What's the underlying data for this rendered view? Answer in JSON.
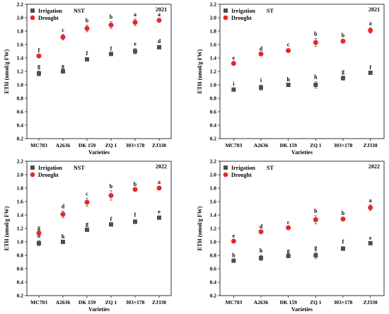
{
  "chart_data": [
    {
      "type": "scatter",
      "legend_title": "NST",
      "year": "2021",
      "xlabel": "Varieties",
      "ylabel": "ETH (umol/g FW)",
      "ylim": [
        0.2,
        2.2
      ],
      "yticks": [
        "0.2",
        "0.4",
        "0.6",
        "0.8",
        "1.0",
        "1.2",
        "1.4",
        "1.6",
        "1.8",
        "2.0",
        "2.2"
      ],
      "categories": [
        "MC703",
        "A2636",
        "DK 159",
        "ZQ 1",
        "303×178",
        "ZJ330"
      ],
      "legend_position": "top-left",
      "series": [
        {
          "name": "Irrigation",
          "marker": "square",
          "color": "#4d4d4d",
          "values": [
            1.17,
            1.2,
            1.38,
            1.46,
            1.5,
            1.56
          ],
          "errors": [
            0.04,
            0.01,
            0.02,
            0.01,
            0.04,
            0.02
          ],
          "labels": [
            "g",
            "g",
            "f",
            "f",
            "e",
            "d"
          ]
        },
        {
          "name": "Drought",
          "marker": "circle",
          "color": "#e8262a",
          "values": [
            1.43,
            1.71,
            1.84,
            1.89,
            1.93,
            1.96
          ],
          "errors": [
            0.01,
            0.04,
            0.05,
            0.05,
            0.05,
            0.02
          ],
          "labels": [
            "f",
            "c",
            "b",
            "b",
            "a",
            "a"
          ]
        }
      ]
    },
    {
      "type": "scatter",
      "legend_title": "ST",
      "year": "2021",
      "xlabel": "Varieties",
      "ylabel": "ETH (umol/g FW)",
      "ylim": [
        0.2,
        2.2
      ],
      "yticks": [
        "0.2",
        "0.4",
        "0.6",
        "0.8",
        "1.0",
        "1.2",
        "1.4",
        "1.6",
        "1.8",
        "2.0",
        "2.2"
      ],
      "categories": [
        "MC703",
        "A2636",
        "DK 159",
        "ZQ 1",
        "303×178",
        "ZJ330"
      ],
      "legend_position": "top-left",
      "series": [
        {
          "name": "Irrigation",
          "marker": "square",
          "color": "#4d4d4d",
          "values": [
            0.93,
            0.96,
            1.0,
            1.0,
            1.1,
            1.18
          ],
          "errors": [
            0.02,
            0.04,
            0.01,
            0.05,
            0.03,
            0.01
          ],
          "labels": [
            "i",
            "i",
            "h",
            "h",
            "g",
            "f"
          ]
        },
        {
          "name": "Drought",
          "marker": "circle",
          "color": "#e8262a",
          "values": [
            1.32,
            1.46,
            1.51,
            1.63,
            1.65,
            1.81
          ],
          "errors": [
            0.01,
            0.01,
            0.02,
            0.06,
            0.02,
            0.04
          ],
          "labels": [
            "e",
            "d",
            "c",
            "b",
            "b",
            "a"
          ]
        }
      ]
    },
    {
      "type": "scatter",
      "legend_title": "NST",
      "year": "2022",
      "xlabel": "Varieties",
      "ylabel": "ETH (umol/g FW)",
      "ylim": [
        0.2,
        2.2
      ],
      "yticks": [
        "0.2",
        "0.4",
        "0.6",
        "0.8",
        "1.0",
        "1.2",
        "1.4",
        "1.6",
        "1.8",
        "2.0",
        "2.2"
      ],
      "categories": [
        "MC703",
        "A2636",
        "DK 159",
        "ZQ 1",
        "303×178",
        "ZJ330"
      ],
      "legend_position": "top-left",
      "series": [
        {
          "name": "Irrigation",
          "marker": "square",
          "color": "#4d4d4d",
          "values": [
            0.98,
            1.0,
            1.18,
            1.26,
            1.3,
            1.36
          ],
          "errors": [
            0.04,
            0.01,
            0.02,
            0.01,
            0.03,
            0.02
          ],
          "labels": [
            "h",
            "h",
            "g",
            "f",
            "f",
            "e"
          ]
        },
        {
          "name": "Drought",
          "marker": "circle",
          "color": "#e8262a",
          "values": [
            1.13,
            1.41,
            1.59,
            1.69,
            1.78,
            1.8
          ],
          "errors": [
            0.01,
            0.05,
            0.06,
            0.07,
            0.01,
            0.02
          ],
          "labels": [
            "g",
            "d",
            "c",
            "b",
            "b",
            "a"
          ]
        }
      ]
    },
    {
      "type": "scatter",
      "legend_title": "ST",
      "year": "2022",
      "xlabel": "Varieties",
      "ylabel": "ETH (umol/g FW)",
      "ylim": [
        0.2,
        2.2
      ],
      "yticks": [
        "0.2",
        "0.4",
        "0.6",
        "0.8",
        "1.0",
        "1.2",
        "1.4",
        "1.6",
        "1.8",
        "2.0",
        "2.2"
      ],
      "categories": [
        "MC703",
        "A2636",
        "DK 159",
        "ZQ 1",
        "303×178",
        "ZJ330"
      ],
      "legend_position": "top-left",
      "series": [
        {
          "name": "Irrigation",
          "marker": "square",
          "color": "#4d4d4d",
          "values": [
            0.72,
            0.76,
            0.79,
            0.8,
            0.9,
            0.98
          ],
          "errors": [
            0.01,
            0.04,
            0.01,
            0.05,
            0.03,
            0.01
          ],
          "labels": [
            "h",
            "h",
            "g",
            "g",
            "f",
            "e"
          ]
        },
        {
          "name": "Drought",
          "marker": "circle",
          "color": "#e8262a",
          "values": [
            1.01,
            1.15,
            1.21,
            1.33,
            1.34,
            1.51
          ],
          "errors": [
            0.01,
            0.01,
            0.01,
            0.06,
            0.02,
            0.04
          ],
          "labels": [
            "e",
            "d",
            "c",
            "b",
            "b",
            "a"
          ]
        }
      ]
    }
  ]
}
